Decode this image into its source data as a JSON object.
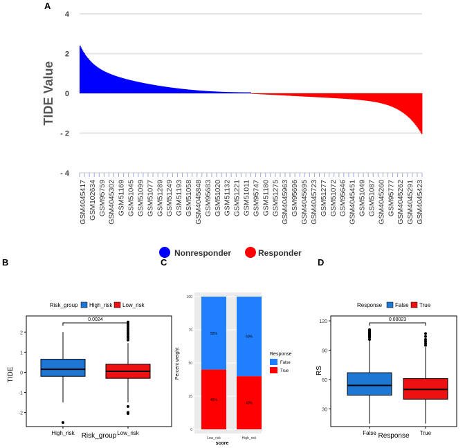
{
  "chart_data": [
    {
      "id": "A",
      "type": "bar",
      "panel_label": "A",
      "ylabel": "TIDE Value",
      "ylim": [
        -4,
        4
      ],
      "yticks": [
        4,
        2,
        0,
        -2,
        -4
      ],
      "ytick_labels": [
        "4",
        "2",
        "0",
        "- 2",
        "- 4"
      ],
      "value_profile": {
        "start": 2.4,
        "end": -2.05,
        "n_bars": 400
      },
      "categories": [
        "GSM4045417",
        "GSM102634",
        "GSM95759",
        "GSM4045302",
        "GSM51169",
        "GSM51045",
        "GSM51099",
        "GSM51077",
        "GSM51289",
        "GSM51249",
        "GSM51193",
        "GSM51058",
        "GSM4045848",
        "GSM95683",
        "GSM51020",
        "GSM51132",
        "GSM51221",
        "GSM51011",
        "GSM95747",
        "GSM51180",
        "GSM51275",
        "GSM4045963",
        "GSM95696",
        "GSM4045695",
        "GSM4045723",
        "GSM51277",
        "GSM51072",
        "GSM95646",
        "GSM4045451",
        "GSM51049",
        "GSM51087",
        "GSM4045260",
        "GSM95777",
        "GSM4045262",
        "GSM4045291",
        "GSM4045423"
      ],
      "legend": [
        {
          "name": "Nonresponder",
          "color": "#0000ff"
        },
        {
          "name": "Responder",
          "color": "#ff0000"
        }
      ]
    },
    {
      "id": "B",
      "type": "box",
      "panel_label": "B",
      "xlabel": "Risk_group",
      "ylabel": "TIDE",
      "legend_title": "Risk_group",
      "ylim": [
        -2.7,
        2.8
      ],
      "yticks": [
        2,
        1,
        0,
        -1,
        -2
      ],
      "pvalue": "0.0024",
      "groups": [
        {
          "name": "High_risk",
          "color": "#1f77d4",
          "whisker_low": -1.5,
          "q1": -0.2,
          "median": 0.15,
          "q3": 0.65,
          "whisker_high": 2.0,
          "outliers": [
            -2.5
          ]
        },
        {
          "name": "Low_risk",
          "color": "#ee1111",
          "whisker_low": -1.5,
          "q1": -0.3,
          "median": 0.05,
          "q3": 0.4,
          "whisker_high": 1.45,
          "outliers": [
            2.5,
            2.4,
            2.3,
            2.2,
            2.1,
            2.0,
            1.9,
            1.8,
            1.7,
            1.6,
            -1.7,
            -2.0,
            -2.05
          ]
        }
      ]
    },
    {
      "id": "C",
      "type": "bar",
      "stacked": true,
      "panel_label": "C",
      "xlabel": "score",
      "ylabel": "Percent weight",
      "ylim": [
        0,
        100
      ],
      "yticks": [
        0,
        25,
        50,
        75,
        100
      ],
      "legend_title": "Response",
      "categories": [
        "Low_risk",
        "High_risk"
      ],
      "series": [
        {
          "name": "True",
          "color": "#ff0000",
          "values": [
            45,
            40
          ],
          "labels": [
            "45%",
            "40%"
          ]
        },
        {
          "name": "False",
          "color": "#1f7fff",
          "values": [
            55,
            60
          ],
          "labels": [
            "55%",
            "60%"
          ]
        }
      ],
      "legend": [
        {
          "name": "False",
          "color": "#1f7fff"
        },
        {
          "name": "True",
          "color": "#ff0000"
        }
      ]
    },
    {
      "id": "D",
      "type": "box",
      "panel_label": "D",
      "xlabel": "Response",
      "ylabel": "RS",
      "legend_title": "Response",
      "ylim": [
        12,
        125
      ],
      "yticks": [
        120,
        90,
        60,
        30
      ],
      "pvalue": "0.00023",
      "groups": [
        {
          "name": "False",
          "color": "#1f77d4",
          "whisker_low": 15,
          "q1": 44,
          "median": 54,
          "q3": 67,
          "whisker_high": 100,
          "outliers": [
            101,
            103,
            104,
            105,
            106,
            107,
            108,
            109,
            110,
            111
          ]
        },
        {
          "name": "True",
          "color": "#ee1111",
          "whisker_low": 15,
          "q1": 40,
          "median": 50,
          "q3": 61,
          "whisker_high": 93,
          "outliers": [
            95,
            97,
            99,
            101,
            104,
            107
          ]
        }
      ]
    }
  ]
}
